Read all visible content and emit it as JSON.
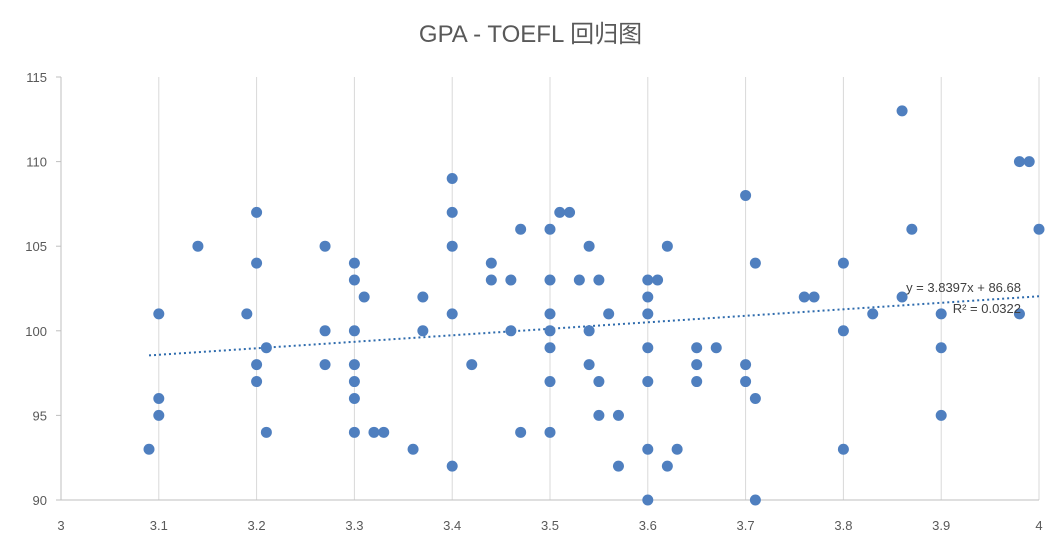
{
  "chart_data": {
    "type": "scatter",
    "title": "GPA - TOEFL 回归图",
    "xlabel": "",
    "ylabel": "",
    "xlim": [
      3,
      4
    ],
    "ylim": [
      90,
      115
    ],
    "x_ticks": [
      3,
      3.1,
      3.2,
      3.3,
      3.4,
      3.5,
      3.6,
      3.7,
      3.8,
      3.9,
      4
    ],
    "x_tick_labels": [
      "3",
      "3.1",
      "3.2",
      "3.3",
      "3.4",
      "3.5",
      "3.6",
      "3.7",
      "3.8",
      "3.9",
      "4"
    ],
    "y_ticks": [
      90,
      95,
      100,
      105,
      110,
      115
    ],
    "y_tick_labels": [
      "90",
      "95",
      "100",
      "105",
      "110",
      "115"
    ],
    "grid": "vertical",
    "marker_color": "#4f7fbf",
    "trendline_color": "#2e6bad",
    "points": [
      [
        3.09,
        93
      ],
      [
        3.1,
        101
      ],
      [
        3.1,
        96
      ],
      [
        3.1,
        95
      ],
      [
        3.14,
        105
      ],
      [
        3.19,
        101
      ],
      [
        3.2,
        107
      ],
      [
        3.2,
        104
      ],
      [
        3.2,
        98
      ],
      [
        3.2,
        97
      ],
      [
        3.21,
        99
      ],
      [
        3.21,
        94
      ],
      [
        3.27,
        105
      ],
      [
        3.27,
        100
      ],
      [
        3.27,
        98
      ],
      [
        3.3,
        104
      ],
      [
        3.3,
        103
      ],
      [
        3.3,
        100
      ],
      [
        3.3,
        98
      ],
      [
        3.3,
        97
      ],
      [
        3.3,
        96
      ],
      [
        3.3,
        94
      ],
      [
        3.31,
        102
      ],
      [
        3.32,
        94
      ],
      [
        3.33,
        94
      ],
      [
        3.36,
        93
      ],
      [
        3.37,
        102
      ],
      [
        3.37,
        100
      ],
      [
        3.4,
        109
      ],
      [
        3.4,
        107
      ],
      [
        3.4,
        105
      ],
      [
        3.4,
        101
      ],
      [
        3.4,
        92
      ],
      [
        3.42,
        98
      ],
      [
        3.44,
        104
      ],
      [
        3.44,
        103
      ],
      [
        3.46,
        103
      ],
      [
        3.46,
        100
      ],
      [
        3.47,
        106
      ],
      [
        3.47,
        94
      ],
      [
        3.5,
        106
      ],
      [
        3.5,
        103
      ],
      [
        3.5,
        101
      ],
      [
        3.5,
        100
      ],
      [
        3.5,
        99
      ],
      [
        3.5,
        97
      ],
      [
        3.5,
        94
      ],
      [
        3.51,
        107
      ],
      [
        3.52,
        107
      ],
      [
        3.53,
        103
      ],
      [
        3.54,
        105
      ],
      [
        3.54,
        100
      ],
      [
        3.54,
        98
      ],
      [
        3.55,
        103
      ],
      [
        3.55,
        97
      ],
      [
        3.55,
        95
      ],
      [
        3.56,
        101
      ],
      [
        3.57,
        95
      ],
      [
        3.57,
        92
      ],
      [
        3.6,
        103
      ],
      [
        3.6,
        102
      ],
      [
        3.6,
        101
      ],
      [
        3.6,
        99
      ],
      [
        3.6,
        97
      ],
      [
        3.6,
        93
      ],
      [
        3.6,
        90
      ],
      [
        3.61,
        103
      ],
      [
        3.62,
        105
      ],
      [
        3.62,
        92
      ],
      [
        3.63,
        93
      ],
      [
        3.65,
        99
      ],
      [
        3.65,
        98
      ],
      [
        3.65,
        97
      ],
      [
        3.67,
        99
      ],
      [
        3.7,
        108
      ],
      [
        3.7,
        98
      ],
      [
        3.7,
        97
      ],
      [
        3.71,
        104
      ],
      [
        3.71,
        96
      ],
      [
        3.71,
        90
      ],
      [
        3.76,
        102
      ],
      [
        3.77,
        102
      ],
      [
        3.8,
        104
      ],
      [
        3.8,
        100
      ],
      [
        3.8,
        93
      ],
      [
        3.83,
        101
      ],
      [
        3.86,
        113
      ],
      [
        3.86,
        102
      ],
      [
        3.87,
        106
      ],
      [
        3.9,
        101
      ],
      [
        3.9,
        99
      ],
      [
        3.9,
        95
      ],
      [
        3.98,
        110
      ],
      [
        3.99,
        110
      ],
      [
        3.98,
        101
      ],
      [
        4,
        106
      ]
    ],
    "trendline": {
      "type": "linear",
      "slope": 3.8397,
      "intercept": 86.68,
      "x_range": [
        3.09,
        4
      ],
      "equation_label": "y = 3.8397x + 86.68",
      "r2_label": "R² = 0.0322"
    }
  }
}
